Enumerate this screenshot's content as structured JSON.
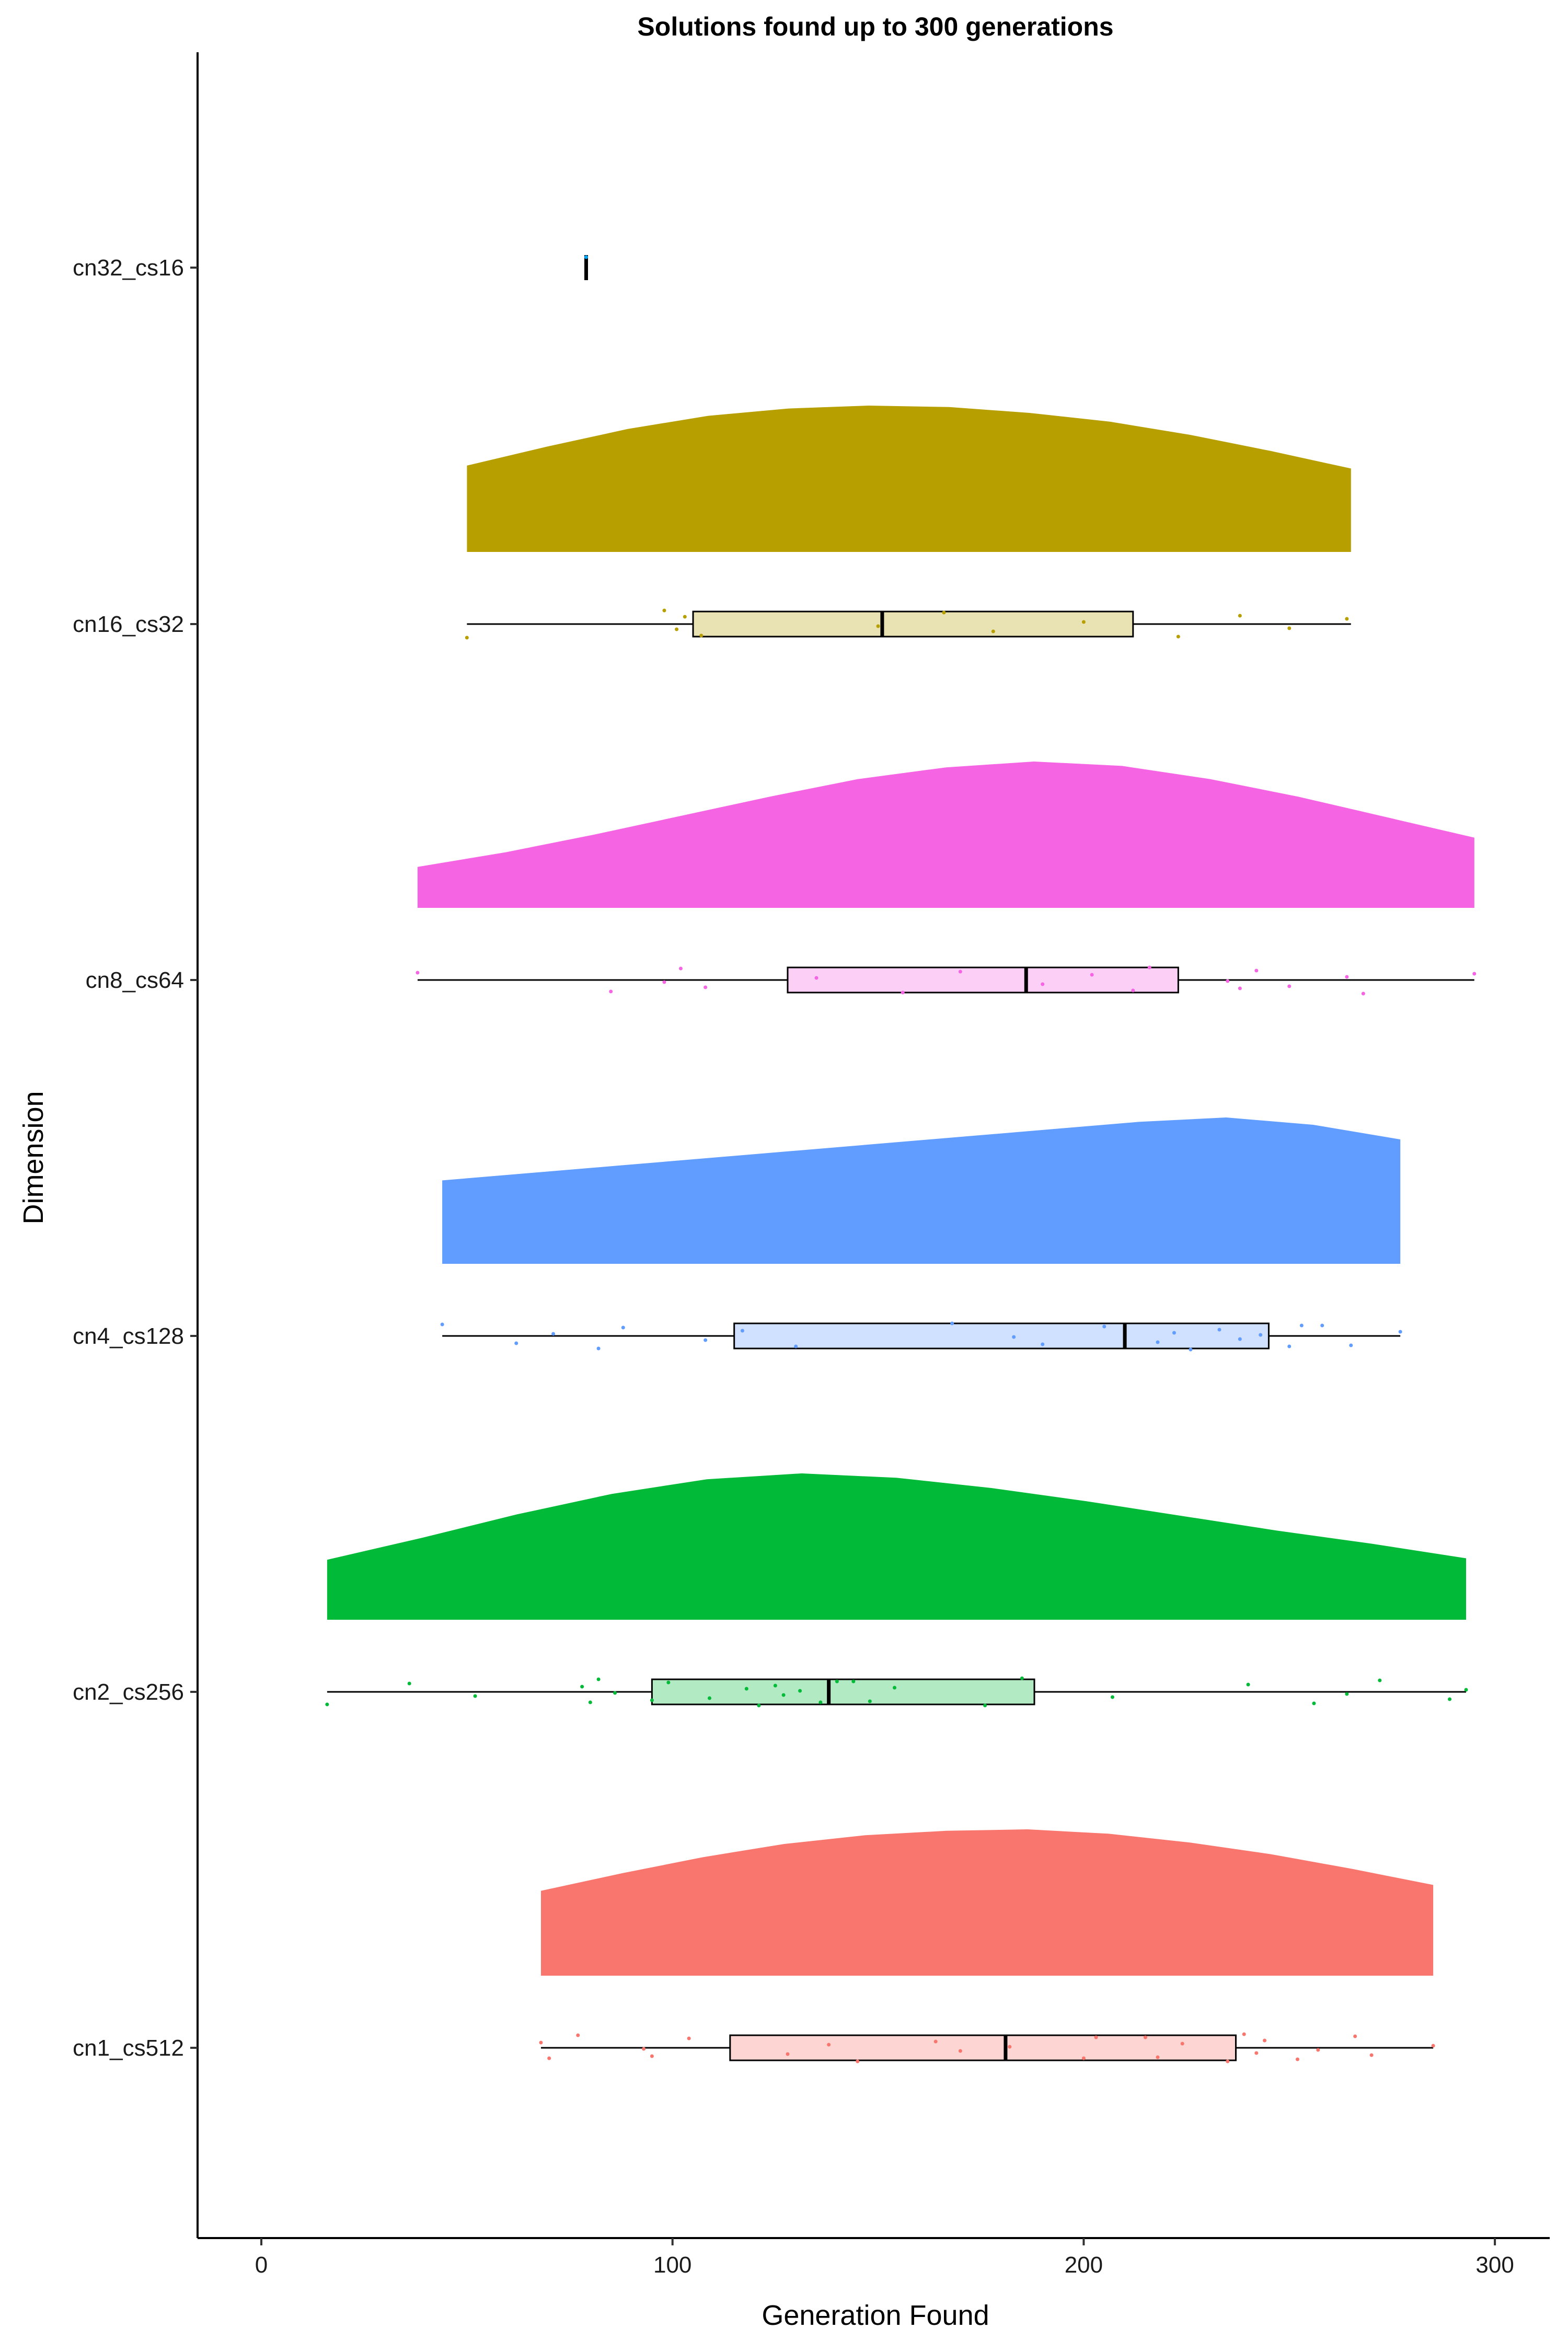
{
  "chart_data": {
    "type": "raincloud",
    "title": "Solutions found up to 300 generations",
    "xlabel": "Generation Found",
    "ylabel": "Dimension",
    "xlim": [
      -15,
      315
    ],
    "x_ticks": [
      0,
      100,
      200,
      300
    ],
    "x_tick_labels": [
      "0",
      "100",
      "200",
      "300"
    ],
    "grid": false,
    "legend": "none",
    "categories": [
      "cn32_cs16",
      "cn16_cs32",
      "cn8_cs64",
      "cn4_cs128",
      "cn2_cs256",
      "cn1_cs512"
    ],
    "series": [
      {
        "name": "cn32_cs16",
        "color": "#00A9FF",
        "box_fill": "#99DDFF",
        "box": {
          "min": 79,
          "q1": 79,
          "median": 79,
          "q3": 79,
          "max": 79
        },
        "density_range": [
          79,
          79
        ],
        "density": [],
        "points": [
          79
        ]
      },
      {
        "name": "cn16_cs32",
        "color": "#B79F00",
        "box_fill": "#E9E2B2",
        "box": {
          "min": 50,
          "q1": 105,
          "median": 151,
          "q3": 212,
          "max": 265
        },
        "density_range": [
          50,
          265
        ],
        "density": [
          0.59,
          0.72,
          0.84,
          0.93,
          0.98,
          1.0,
          0.99,
          0.95,
          0.89,
          0.8,
          0.69,
          0.57
        ],
        "points": [
          50,
          98,
          101,
          103,
          107,
          150,
          166,
          178,
          200,
          223,
          238,
          250,
          264
        ]
      },
      {
        "name": "cn8_cs64",
        "color": "#F564E3",
        "box_fill": "#FCD0F6",
        "box": {
          "min": 38,
          "q1": 128,
          "median": 186,
          "q3": 223,
          "max": 295
        },
        "density_range": [
          38,
          295
        ],
        "density": [
          0.28,
          0.38,
          0.5,
          0.63,
          0.76,
          0.88,
          0.96,
          1.0,
          0.97,
          0.88,
          0.76,
          0.62,
          0.48
        ],
        "points": [
          38,
          85,
          98,
          102,
          108,
          135,
          156,
          170,
          190,
          202,
          212,
          216,
          235,
          238,
          242,
          250,
          264,
          268,
          295
        ]
      },
      {
        "name": "cn4_cs128",
        "color": "#619CFF",
        "box_fill": "#D0E1FF",
        "box": {
          "min": 44,
          "q1": 115,
          "median": 210,
          "q3": 245,
          "max": 277
        },
        "density_range": [
          44,
          277
        ],
        "density": [
          0.57,
          0.62,
          0.67,
          0.72,
          0.77,
          0.82,
          0.87,
          0.92,
          0.97,
          1.0,
          0.95,
          0.85
        ],
        "points": [
          44,
          62,
          71,
          82,
          88,
          108,
          117,
          130,
          168,
          183,
          190,
          205,
          218,
          222,
          226,
          233,
          238,
          243,
          250,
          253,
          258,
          265,
          277
        ]
      },
      {
        "name": "cn2_cs256",
        "color": "#00BA38",
        "box_fill": "#B2EAC3",
        "box": {
          "min": 16,
          "q1": 95,
          "median": 138,
          "q3": 188,
          "max": 293
        },
        "density_range": [
          16,
          293
        ],
        "density": [
          0.41,
          0.56,
          0.72,
          0.86,
          0.96,
          1.0,
          0.97,
          0.9,
          0.81,
          0.71,
          0.61,
          0.52,
          0.42
        ],
        "points": [
          16,
          36,
          52,
          78,
          80,
          82,
          86,
          95,
          99,
          109,
          118,
          121,
          125,
          127,
          131,
          136,
          140,
          144,
          148,
          154,
          176,
          185,
          207,
          240,
          256,
          264,
          272,
          289,
          293
        ]
      },
      {
        "name": "cn1_cs512",
        "color": "#F8766D",
        "box_fill": "#FDD5D2",
        "box": {
          "min": 68,
          "q1": 114,
          "median": 181,
          "q3": 237,
          "max": 285
        },
        "density_range": [
          68,
          285
        ],
        "density": [
          0.58,
          0.7,
          0.81,
          0.9,
          0.96,
          0.99,
          1.0,
          0.97,
          0.91,
          0.83,
          0.73,
          0.62
        ],
        "points": [
          68,
          70,
          77,
          93,
          95,
          104,
          128,
          138,
          145,
          164,
          170,
          182,
          200,
          203,
          215,
          218,
          224,
          235,
          239,
          242,
          244,
          252,
          257,
          266,
          270,
          285
        ]
      }
    ]
  }
}
